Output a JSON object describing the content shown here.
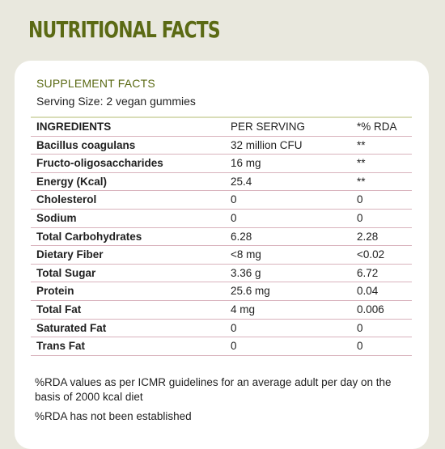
{
  "heading": "NUTRITIONAL FACTS",
  "supplement_title": "SUPPLEMENT FACTS",
  "serving_size": "Serving Size: 2 vegan gummies",
  "table": {
    "headers": [
      "INGREDIENTS",
      "PER SERVING",
      "*% RDA"
    ],
    "rows": [
      [
        "Bacillus coagulans",
        "32 million CFU",
        "**"
      ],
      [
        "Fructo-oligosaccharides",
        "16 mg",
        "**"
      ],
      [
        "Energy (Kcal)",
        "25.4",
        "**"
      ],
      [
        "Cholesterol",
        "0",
        "0"
      ],
      [
        "Sodium",
        "0",
        "0"
      ],
      [
        "Total Carbohydrates",
        "6.28",
        "2.28"
      ],
      [
        "Dietary Fiber",
        "<8 mg",
        "<0.02"
      ],
      [
        "Total Sugar",
        "3.36 g",
        "6.72"
      ],
      [
        "Protein",
        "25.6 mg",
        "0.04"
      ],
      [
        "Total Fat",
        "4 mg",
        "0.006"
      ],
      [
        "Saturated Fat",
        "0",
        "0"
      ],
      [
        "Trans Fat",
        "0",
        "0"
      ]
    ]
  },
  "footnote_1": "%RDA values as per ICMR guidelines for an average adult per day on the basis of 2000 kcal diet",
  "footnote_2": "%RDA has not been established",
  "colors": {
    "background": "#e9e8de",
    "accent": "#5b6a14",
    "card": "#ffffff",
    "row_divider": "#d9b3bd"
  }
}
